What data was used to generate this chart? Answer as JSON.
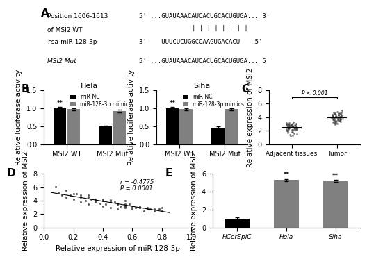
{
  "panel_A": {
    "line1_left": "Position 1606-1613",
    "line1_right": "5' ...GUAUAAACAUCACUGCACUGUGA... 3'",
    "line2_left": "of MSI2 WT",
    "line3_left": "hsa-miR-128-3p",
    "line3_right": "3'    UUUCUCUGGCCAAGUGACACU    5'",
    "binding_bars": 8,
    "line4_left": "MSI2 Mut",
    "line4_right": "5' ...GUAUAAACAUCACUGCACUGUGA... 5'"
  },
  "panel_B_Hela": {
    "title": "Hela",
    "groups": [
      "MSI2 WT",
      "MSI2 Mut"
    ],
    "bar_labels": [
      "miR-NC",
      "miR-128-3p mimics"
    ],
    "bar_colors": [
      "#000000",
      "#808080"
    ],
    "values": [
      [
        1.0,
        0.97
      ],
      [
        0.49,
        0.92
      ]
    ],
    "errors": [
      [
        0.04,
        0.03
      ],
      [
        0.03,
        0.04
      ]
    ],
    "ylabel": "Relative luciferase activity",
    "ylim": [
      0,
      1.5
    ],
    "yticks": [
      0.0,
      0.5,
      1.0,
      1.5
    ],
    "star_positions": [
      1
    ],
    "stars": "**"
  },
  "panel_B_Siha": {
    "title": "Siha",
    "groups": [
      "MSI2 WT",
      "MSI2 Mut"
    ],
    "bar_labels": [
      "miR-NC",
      "miR-128-3p mimics"
    ],
    "bar_colors": [
      "#000000",
      "#808080"
    ],
    "values": [
      [
        1.0,
        0.97
      ],
      [
        0.45,
        0.97
      ]
    ],
    "errors": [
      [
        0.04,
        0.03
      ],
      [
        0.04,
        0.03
      ]
    ],
    "ylabel": "Relative luciferase activity",
    "ylim": [
      0,
      1.5
    ],
    "yticks": [
      0.0,
      0.5,
      1.0,
      1.5
    ],
    "star_positions": [
      1
    ],
    "stars": "**"
  },
  "panel_C": {
    "ylabel": "Relative expression of MSI2",
    "xlabels": [
      "Adjacent tissues",
      "Tumor"
    ],
    "ylim": [
      0,
      8
    ],
    "yticks": [
      0,
      2,
      4,
      6,
      8
    ],
    "adjacent_dots": [
      1.2,
      1.5,
      1.6,
      1.8,
      1.9,
      2.0,
      2.0,
      2.1,
      2.1,
      2.2,
      2.2,
      2.3,
      2.3,
      2.3,
      2.4,
      2.4,
      2.4,
      2.5,
      2.5,
      2.6,
      2.6,
      2.7,
      2.7,
      2.8,
      2.8,
      2.9,
      3.0,
      3.0,
      3.1,
      3.2,
      1.3,
      1.7,
      2.0,
      2.1,
      2.2,
      2.3,
      2.4,
      2.5,
      2.6,
      2.7,
      2.8,
      2.9,
      3.0,
      3.1,
      3.2,
      3.3,
      1.4,
      1.8,
      2.1,
      2.2,
      2.3,
      2.4,
      2.5,
      2.6,
      2.7,
      2.8,
      2.9,
      3.0,
      3.1
    ],
    "tumor_dots": [
      3.0,
      3.2,
      3.3,
      3.4,
      3.5,
      3.5,
      3.6,
      3.6,
      3.7,
      3.7,
      3.8,
      3.8,
      3.9,
      3.9,
      4.0,
      4.0,
      4.0,
      4.1,
      4.1,
      4.2,
      4.2,
      4.3,
      4.3,
      4.4,
      4.4,
      4.5,
      4.5,
      4.6,
      4.6,
      4.7,
      3.1,
      3.3,
      3.5,
      3.6,
      3.7,
      3.8,
      3.9,
      4.0,
      4.1,
      4.2,
      4.3,
      4.4,
      4.5,
      4.6,
      4.8,
      5.0,
      3.2,
      3.4,
      3.6,
      3.7,
      3.8,
      3.9,
      4.0,
      4.1,
      4.2,
      4.3,
      4.4,
      4.5,
      4.7
    ],
    "pvalue": "P < 0.001",
    "dot_color": "#404040"
  },
  "panel_D": {
    "xlabel": "Relative expression of miR-128-3p",
    "ylabel": "Relative expression of MSI2",
    "xlim": [
      0,
      1.0
    ],
    "ylim": [
      0,
      8
    ],
    "xticks": [
      0.0,
      0.2,
      0.4,
      0.6,
      0.8,
      1.0
    ],
    "yticks": [
      0,
      2,
      4,
      6,
      8
    ],
    "annotation": "r = -0.4775\nP = 0.0001",
    "dot_color": "#404040",
    "x_data": [
      0.08,
      0.1,
      0.12,
      0.15,
      0.18,
      0.2,
      0.22,
      0.25,
      0.28,
      0.3,
      0.32,
      0.35,
      0.38,
      0.4,
      0.4,
      0.42,
      0.45,
      0.45,
      0.48,
      0.5,
      0.5,
      0.52,
      0.55,
      0.55,
      0.58,
      0.6,
      0.62,
      0.65,
      0.68,
      0.7,
      0.72,
      0.75,
      0.78,
      0.8,
      0.25,
      0.35,
      0.45,
      0.55,
      0.65,
      0.3,
      0.4,
      0.5,
      0.6,
      0.7,
      0.2,
      0.3,
      0.4,
      0.5,
      0.6,
      0.7,
      0.8,
      0.15,
      0.25,
      0.35,
      0.55,
      0.65,
      0.75,
      0.45,
      0.55
    ],
    "y_data": [
      6.1,
      5.2,
      4.8,
      4.5,
      4.8,
      4.2,
      5.0,
      3.8,
      4.0,
      3.5,
      4.2,
      3.8,
      3.6,
      4.0,
      3.2,
      3.5,
      4.1,
      3.0,
      3.8,
      3.5,
      2.8,
      3.2,
      3.0,
      4.0,
      3.5,
      2.8,
      3.0,
      3.2,
      2.5,
      3.0,
      2.8,
      2.5,
      2.8,
      3.0,
      4.5,
      4.0,
      3.8,
      3.2,
      3.0,
      4.8,
      4.2,
      3.6,
      3.0,
      2.8,
      5.0,
      4.5,
      4.0,
      3.5,
      3.2,
      2.8,
      2.5,
      5.5,
      4.8,
      4.2,
      3.5,
      3.0,
      2.8,
      3.8,
      3.2
    ]
  },
  "panel_E": {
    "categories": [
      "HCerEpiC",
      "Hela",
      "Siha"
    ],
    "values": [
      1.0,
      5.3,
      5.2
    ],
    "errors": [
      0.12,
      0.12,
      0.12
    ],
    "bar_colors": [
      "#000000",
      "#808080",
      "#808080"
    ],
    "ylabel": "Relative expression of MSI2",
    "ylim": [
      0,
      6
    ],
    "yticks": [
      0,
      2,
      4,
      6
    ],
    "stars": "**",
    "star_indices": [
      1,
      2
    ]
  },
  "label_color": "#000000",
  "panel_label_fontsize": 11,
  "tick_fontsize": 7,
  "axis_label_fontsize": 7.5
}
